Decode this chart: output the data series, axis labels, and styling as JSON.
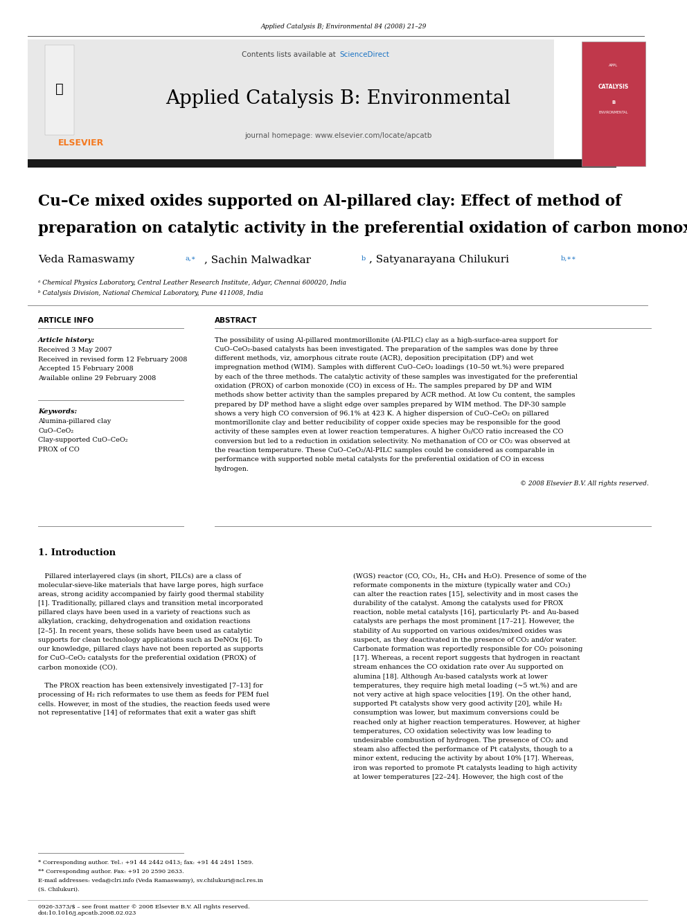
{
  "page_width": 9.92,
  "page_height": 13.23,
  "background_color": "#ffffff",
  "top_bar_text": "Applied Catalysis B; Environmental 84 (2008) 21–29",
  "header_bg": "#e8e8e8",
  "header_title": "Applied Catalysis B: Environmental",
  "header_subtitle": "journal homepage: www.elsevier.com/locate/apcatb",
  "sciencedirect_color": "#1a73c4",
  "elsevier_color": "#f47920",
  "thick_bar_color": "#1a1a1a",
  "article_title_line1": "Cu–Ce mixed oxides supported on Al-pillared clay: Effect of method of",
  "article_title_line2": "preparation on catalytic activity in the preferential oxidation of carbon monoxide",
  "affil1": "ᵃ Chemical Physics Laboratory, Central Leather Research Institute, Adyar, Chennai 600020, India",
  "affil2": "ᵇ Catalysis Division, National Chemical Laboratory, Pune 411008, India",
  "article_info_header": "ARTICLE INFO",
  "abstract_header": "ABSTRACT",
  "article_history_label": "Article history:",
  "received1": "Received 3 May 2007",
  "received2": "Received in revised form 12 February 2008",
  "accepted": "Accepted 15 February 2008",
  "available": "Available online 29 February 2008",
  "keywords_label": "Keywords:",
  "kw1": "Alumina-pillared clay",
  "kw2": "CuO–CeO₂",
  "kw3": "Clay-supported CuO–CeO₂",
  "kw4": "PROX of CO",
  "copyright": "© 2008 Elsevier B.V. All rights reserved.",
  "section1_title": "1. Introduction",
  "footnote1": "* Corresponding author. Tel.: +91 44 2442 0413; fax: +91 44 2491 1589.",
  "footnote2": "** Corresponding author. Fax: +91 20 2590 2633.",
  "footnote3": "E-mail addresses: veda@clri.info (Veda Ramaswamy), sv.chilukuri@ncl.res.in",
  "footnote4": "(S. Chilukuri).",
  "footer_line1": "0926-3373/$ – see front matter © 2008 Elsevier B.V. All rights reserved.",
  "footer_line2": "doi:10.1016/j.apcatb.2008.02.023",
  "abstract_lines": [
    "The possibility of using Al-pillared montmorillonite (Al-PILC) clay as a high-surface-area support for",
    "CuO–CeO₂-based catalysts has been investigated. The preparation of the samples was done by three",
    "different methods, viz, amorphous citrate route (ACR), deposition precipitation (DP) and wet",
    "impregnation method (WIM). Samples with different CuO–CeO₂ loadings (10–50 wt.%) were prepared",
    "by each of the three methods. The catalytic activity of these samples was investigated for the preferential",
    "oxidation (PROX) of carbon monoxide (CO) in excess of H₂. The samples prepared by DP and WIM",
    "methods show better activity than the samples prepared by ACR method. At low Cu content, the samples",
    "prepared by DP method have a slight edge over samples prepared by WIM method. The DP-30 sample",
    "shows a very high CO conversion of 96.1% at 423 K. A higher dispersion of CuO–CeO₂ on pillared",
    "montmorillonite clay and better reducibility of copper oxide species may be responsible for the good",
    "activity of these samples even at lower reaction temperatures. A higher O₂/CO ratio increased the CO",
    "conversion but led to a reduction in oxidation selectivity. No methanation of CO or CO₂ was observed at",
    "the reaction temperature. These CuO–CeO₂/Al-PILC samples could be considered as comparable in",
    "performance with supported noble metal catalysts for the preferential oxidation of CO in excess",
    "hydrogen."
  ],
  "intro_lines_left": [
    "   Pillared interlayered clays (in short, PILCs) are a class of",
    "molecular-sieve-like materials that have large pores, high surface",
    "areas, strong acidity accompanied by fairly good thermal stability",
    "[1]. Traditionally, pillared clays and transition metal incorporated",
    "pillared clays have been used in a variety of reactions such as",
    "alkylation, cracking, dehydrogenation and oxidation reactions",
    "[2–5]. In recent years, these solids have been used as catalytic",
    "supports for clean technology applications such as DeNOx [6]. To",
    "our knowledge, pillared clays have not been reported as supports",
    "for CuO–CeO₂ catalysts for the preferential oxidation (PROX) of",
    "carbon monoxide (CO).",
    "",
    "   The PROX reaction has been extensively investigated [7–13] for",
    "processing of H₂ rich reformates to use them as feeds for PEM fuel",
    "cells. However, in most of the studies, the reaction feeds used were",
    "not representative [14] of reformates that exit a water gas shift"
  ],
  "intro_lines_right": [
    "(WGS) reactor (CO, CO₂, H₂, CH₄ and H₂O). Presence of some of the",
    "reformate components in the mixture (typically water and CO₂)",
    "can alter the reaction rates [15], selectivity and in most cases the",
    "durability of the catalyst. Among the catalysts used for PROX",
    "reaction, noble metal catalysts [16], particularly Pt- and Au-based",
    "catalysts are perhaps the most prominent [17–21]. However, the",
    "stability of Au supported on various oxides/mixed oxides was",
    "suspect, as they deactivated in the presence of CO₂ and/or water.",
    "Carbonate formation was reportedly responsible for CO₂ poisoning",
    "[17]. Whereas, a recent report suggests that hydrogen in reactant",
    "stream enhances the CO oxidation rate over Au supported on",
    "alumina [18]. Although Au-based catalysts work at lower",
    "temperatures, they require high metal loading (~5 wt.%) and are",
    "not very active at high space velocities [19]. On the other hand,",
    "supported Pt catalysts show very good activity [20], while H₂",
    "consumption was lower, but maximum conversions could be",
    "reached only at higher reaction temperatures. However, at higher",
    "temperatures, CO oxidation selectivity was low leading to",
    "undesirable combustion of hydrogen. The presence of CO₂ and",
    "steam also affected the performance of Pt catalysts, though to a",
    "minor extent, reducing the activity by about 10% [17]. Whereas,",
    "iron was reported to promote Pt catalysts leading to high activity",
    "at lower temperatures [22–24]. However, the high cost of the"
  ]
}
